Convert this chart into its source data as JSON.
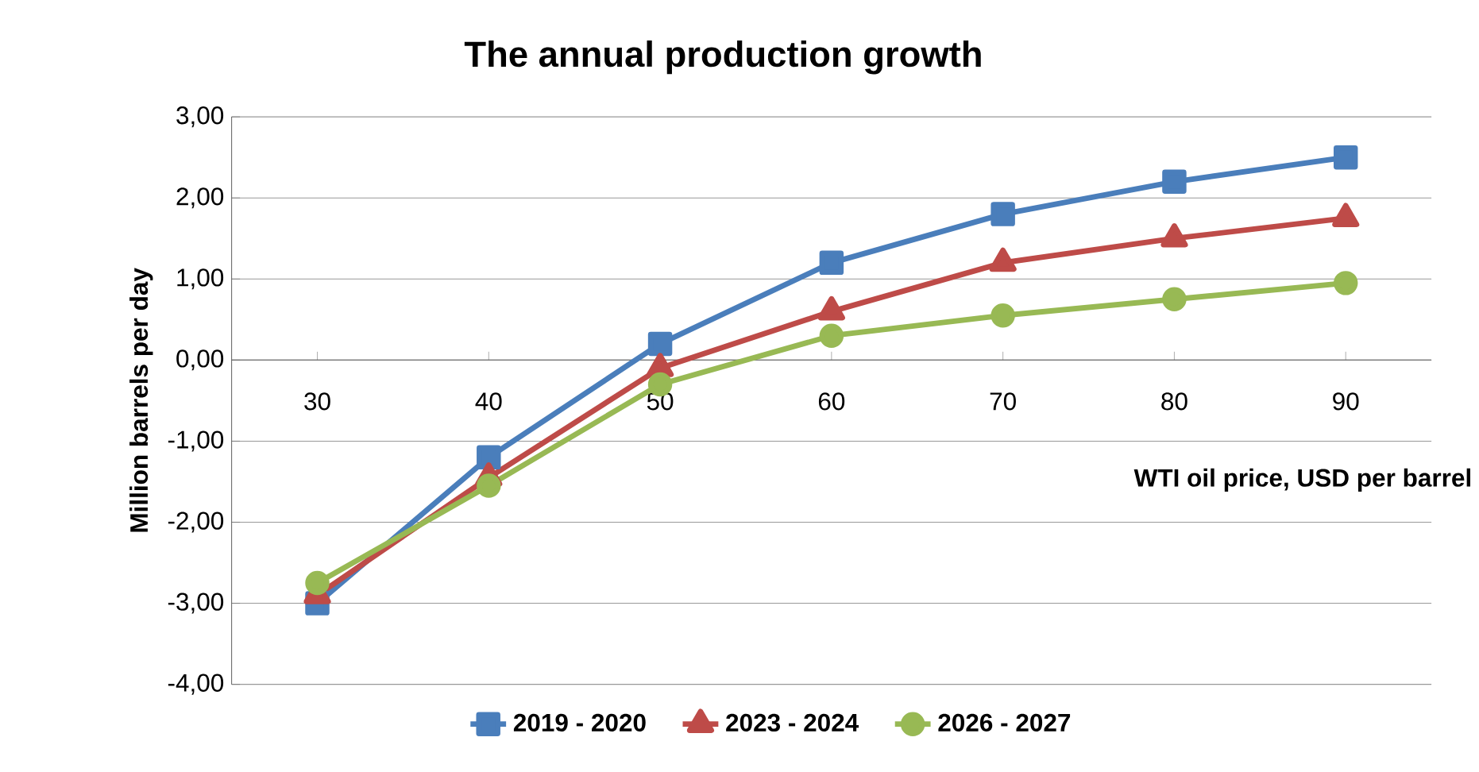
{
  "chart_data": {
    "type": "line",
    "title": "The annual production growth",
    "xlabel": "WTI oil price, USD per barrel",
    "ylabel": "Million barrels per day",
    "categories": [
      "30",
      "40",
      "50",
      "60",
      "70",
      "80",
      "90"
    ],
    "series": [
      {
        "name": "2019 - 2020",
        "color": "#4a7ebb",
        "marker": "square",
        "values": [
          -3.0,
          -1.2,
          0.2,
          1.2,
          1.8,
          2.2,
          2.5
        ]
      },
      {
        "name": "2023 - 2024",
        "color": "#be4b48",
        "marker": "triangle",
        "values": [
          -2.9,
          -1.45,
          -0.1,
          0.6,
          1.2,
          1.5,
          1.75
        ]
      },
      {
        "name": "2026 - 2027",
        "color": "#98b954",
        "marker": "circle",
        "values": [
          -2.75,
          -1.55,
          -0.3,
          0.3,
          0.55,
          0.75,
          0.95
        ]
      }
    ],
    "ylim": [
      -4,
      3
    ],
    "yticks": [
      {
        "value": -4,
        "label": "-4,00"
      },
      {
        "value": -3,
        "label": "-3,00"
      },
      {
        "value": -2,
        "label": "-2,00"
      },
      {
        "value": -1,
        "label": "-1,00"
      },
      {
        "value": 0,
        "label": "0,00"
      },
      {
        "value": 1,
        "label": "1,00"
      },
      {
        "value": 2,
        "label": "2,00"
      },
      {
        "value": 3,
        "label": "3,00"
      }
    ],
    "grid": "y",
    "legend": "bottom",
    "line_style": "solid"
  }
}
